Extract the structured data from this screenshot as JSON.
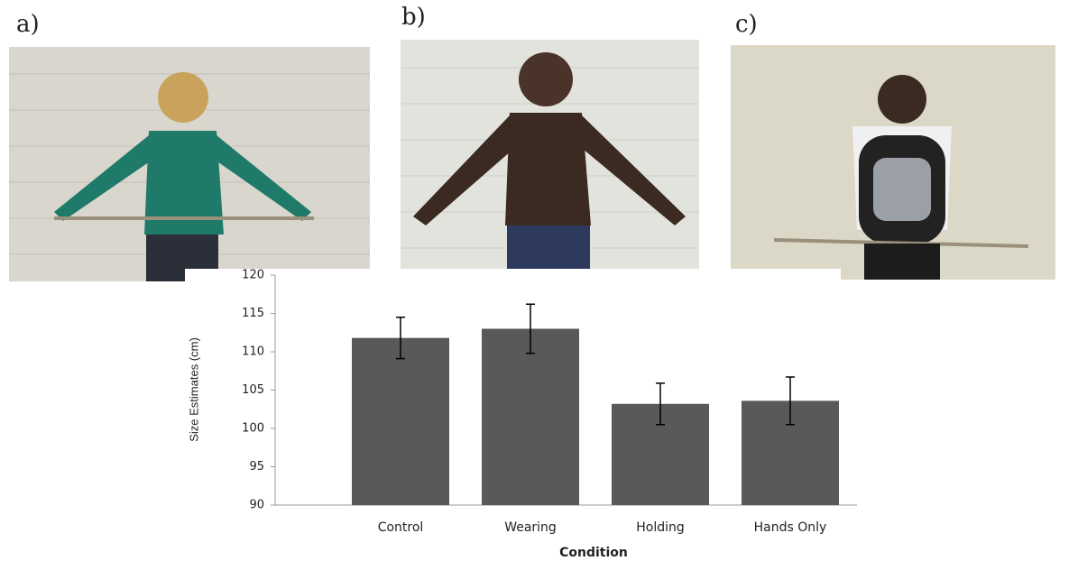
{
  "panels": [
    {
      "label": "a)"
    },
    {
      "label": "b)"
    },
    {
      "label": "c)"
    }
  ],
  "chart_data": {
    "type": "bar",
    "x_label": "Condition",
    "y_label": "Size Estimates (cm)",
    "categories": [
      "Control",
      "Wearing",
      "Holding",
      "Hands Only"
    ],
    "values": [
      111.8,
      113,
      103.2,
      103.6
    ],
    "errors": [
      2.7,
      3.2,
      2.7,
      3.1
    ],
    "color": "#595959",
    "ylim": [
      90,
      120
    ],
    "yticks": [
      90,
      95,
      100,
      105,
      110,
      115,
      120
    ],
    "grid": false
  }
}
